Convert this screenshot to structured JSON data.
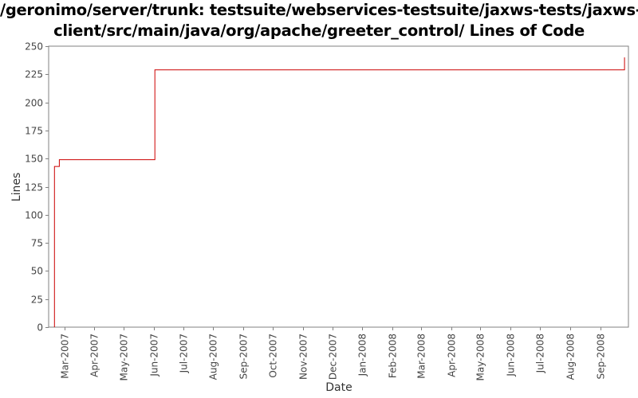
{
  "chart_data": {
    "type": "line",
    "title_lines": [
      "/geronimo/server/trunk: testsuite/webservices-testsuite/jaxws-tests/jaxws-",
      "client/src/main/java/org/apache/greeter_control/ Lines of Code"
    ],
    "xlabel": "Date",
    "ylabel": "Lines",
    "ylim": [
      0,
      250
    ],
    "yticks": [
      0,
      25,
      50,
      75,
      100,
      125,
      150,
      175,
      200,
      225,
      250
    ],
    "xlim": [
      "2007-02-13",
      "2008-09-30"
    ],
    "xticks": [
      {
        "date": "2007-03-01",
        "label": "Mar-2007"
      },
      {
        "date": "2007-04-01",
        "label": "Apr-2007"
      },
      {
        "date": "2007-05-01",
        "label": "May-2007"
      },
      {
        "date": "2007-06-01",
        "label": "Jun-2007"
      },
      {
        "date": "2007-07-01",
        "label": "Jul-2007"
      },
      {
        "date": "2007-08-01",
        "label": "Aug-2007"
      },
      {
        "date": "2007-09-01",
        "label": "Sep-2007"
      },
      {
        "date": "2007-10-01",
        "label": "Oct-2007"
      },
      {
        "date": "2007-11-01",
        "label": "Nov-2007"
      },
      {
        "date": "2007-12-01",
        "label": "Dec-2007"
      },
      {
        "date": "2008-01-01",
        "label": "Jan-2008"
      },
      {
        "date": "2008-02-01",
        "label": "Feb-2008"
      },
      {
        "date": "2008-03-01",
        "label": "Mar-2008"
      },
      {
        "date": "2008-04-01",
        "label": "Apr-2008"
      },
      {
        "date": "2008-05-01",
        "label": "May-2008"
      },
      {
        "date": "2008-06-01",
        "label": "Jun-2008"
      },
      {
        "date": "2008-07-01",
        "label": "Jul-2008"
      },
      {
        "date": "2008-08-01",
        "label": "Aug-2008"
      },
      {
        "date": "2008-09-01",
        "label": "Sep-2008"
      }
    ],
    "grid": false,
    "series": [
      {
        "color": "#cc0000",
        "step": true,
        "x": [
          "2007-02-19",
          "2007-02-19",
          "2007-02-24",
          "2007-06-02",
          "2008-09-26",
          "2008-09-26"
        ],
        "y": [
          0,
          143,
          149,
          229,
          229,
          240
        ]
      }
    ]
  },
  "colors": {
    "line": "#cc0000",
    "plot_border": "#808080",
    "axis": "#808080"
  }
}
